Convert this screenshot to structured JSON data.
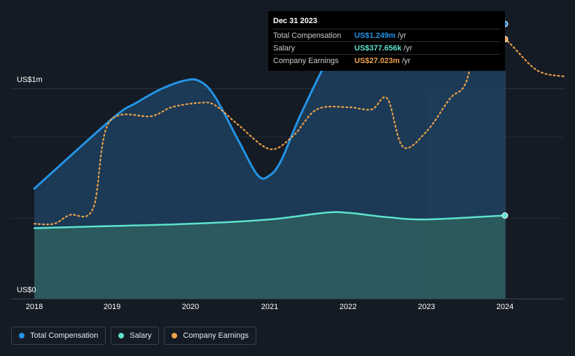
{
  "tooltip": {
    "date": "Dec 31 2023",
    "rows": [
      {
        "name": "Total Compensation",
        "value": "US$1.249m",
        "unit": "/yr",
        "color": "#2394e8"
      },
      {
        "name": "Salary",
        "value": "US$377.656k",
        "unit": "/yr",
        "color": "#5ee3d0"
      },
      {
        "name": "Company Earnings",
        "value": "US$27.023m",
        "unit": "/yr",
        "color": "#f0a24a"
      }
    ]
  },
  "legend": [
    {
      "label": "Total Compensation",
      "color": "#2394e8"
    },
    {
      "label": "Salary",
      "color": "#5ee3d0"
    },
    {
      "label": "Company Earnings",
      "color": "#f0a24a"
    }
  ],
  "chart_data": {
    "type": "area",
    "y_axis_labels": [
      "US$1m",
      "US$0"
    ],
    "x_tick_labels": [
      "2018",
      "2019",
      "2020",
      "2021",
      "2022",
      "2023",
      "2024"
    ],
    "ylim": [
      0,
      1.31
    ],
    "y_unit": "US$m",
    "grid": true,
    "legend_position": "bottom-left",
    "highlight_range": [
      "2023-01-01",
      "2024-01-01"
    ],
    "series": [
      {
        "name": "Total Compensation",
        "color": "#2394e8",
        "points": [
          [
            2018.0,
            0.5
          ],
          [
            2019.0,
            0.82
          ],
          [
            2019.3,
            0.89
          ],
          [
            2019.6,
            0.95
          ],
          [
            2019.9,
            0.99
          ],
          [
            2020.1,
            0.99
          ],
          [
            2020.3,
            0.92
          ],
          [
            2020.6,
            0.72
          ],
          [
            2020.85,
            0.56
          ],
          [
            2021.0,
            0.56
          ],
          [
            2021.15,
            0.63
          ],
          [
            2021.4,
            0.84
          ],
          [
            2021.8,
            1.12
          ],
          [
            2022.0,
            1.14
          ],
          [
            2022.5,
            1.15
          ],
          [
            2023.0,
            1.16
          ],
          [
            2023.5,
            1.2
          ],
          [
            2024.0,
            1.249
          ]
        ]
      },
      {
        "name": "Salary",
        "color": "#5ee3d0",
        "points": [
          [
            2018.0,
            0.32
          ],
          [
            2019.0,
            0.33
          ],
          [
            2020.0,
            0.34
          ],
          [
            2021.0,
            0.36
          ],
          [
            2021.7,
            0.39
          ],
          [
            2022.0,
            0.39
          ],
          [
            2022.5,
            0.37
          ],
          [
            2023.0,
            0.36
          ],
          [
            2024.0,
            0.377656
          ]
        ]
      },
      {
        "name": "Company Earnings",
        "color": "#f0a24a",
        "unit_note": "scaled to chart",
        "points": [
          [
            2018.0,
            0.34
          ],
          [
            2018.25,
            0.34
          ],
          [
            2018.45,
            0.38
          ],
          [
            2018.75,
            0.41
          ],
          [
            2018.95,
            0.8
          ],
          [
            2019.5,
            0.83
          ],
          [
            2019.75,
            0.87
          ],
          [
            2020.1,
            0.89
          ],
          [
            2020.3,
            0.88
          ],
          [
            2020.6,
            0.79
          ],
          [
            2021.0,
            0.68
          ],
          [
            2021.3,
            0.74
          ],
          [
            2021.6,
            0.86
          ],
          [
            2022.0,
            0.87
          ],
          [
            2022.3,
            0.86
          ],
          [
            2022.5,
            0.91
          ],
          [
            2022.7,
            0.69
          ],
          [
            2023.0,
            0.76
          ],
          [
            2023.3,
            0.91
          ],
          [
            2023.5,
            0.98
          ],
          [
            2023.7,
            1.23
          ],
          [
            2024.0,
            1.18
          ],
          [
            2024.4,
            1.04
          ],
          [
            2024.75,
            1.01
          ]
        ]
      }
    ]
  }
}
